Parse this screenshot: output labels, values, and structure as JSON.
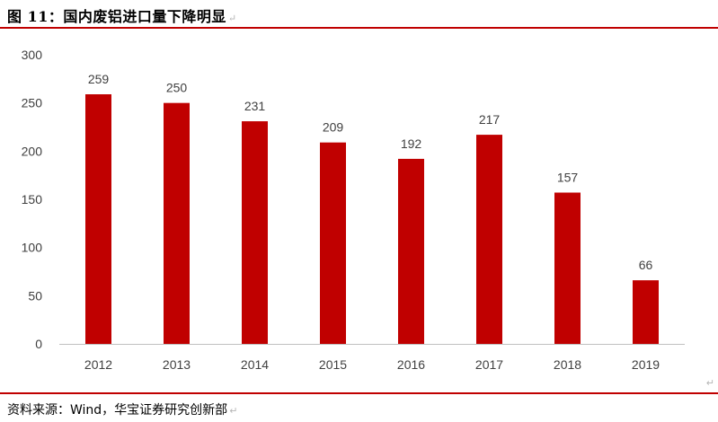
{
  "figure": {
    "title": "图 11：国内废铝进口量下降明显",
    "source": "资料来源：Wind，华宝证券研究创新部",
    "para_mark": "↵"
  },
  "colors": {
    "bar": "#c00000",
    "rule": "#c00000",
    "axis": "#bfbfbf",
    "text": "#404040"
  },
  "chart_data": {
    "type": "bar",
    "title": "",
    "xlabel": "",
    "ylabel": "",
    "categories": [
      "2012",
      "2013",
      "2014",
      "2015",
      "2016",
      "2017",
      "2018",
      "2019"
    ],
    "values": [
      259,
      250,
      231,
      209,
      192,
      217,
      157,
      66
    ],
    "data_labels": [
      "259",
      "250",
      "231",
      "209",
      "192",
      "217",
      "157",
      "66"
    ],
    "ylim": [
      0,
      300
    ],
    "yticks": [
      0,
      50,
      100,
      150,
      200,
      250,
      300
    ],
    "grid": false,
    "legend": "none"
  }
}
